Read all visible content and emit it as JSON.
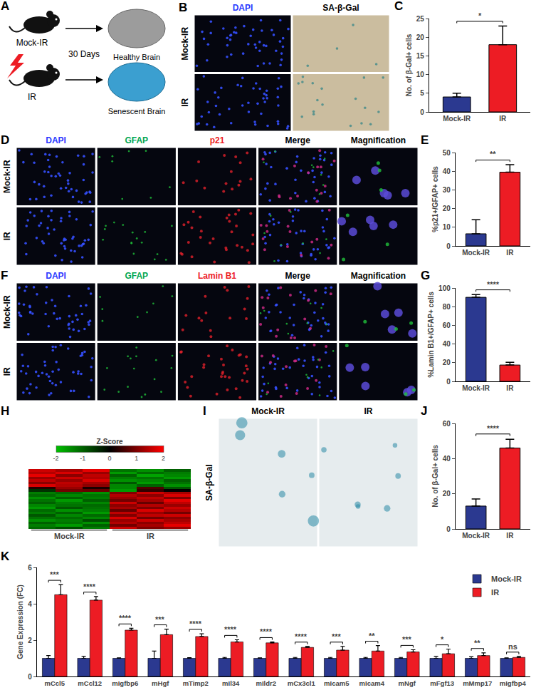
{
  "panels": [
    {
      "letter": "A",
      "groups": [
        "Mock-IR",
        "IR"
      ],
      "arrow_label": "30 Days",
      "outcomes": [
        "Healthy Brain",
        "Senescent Brain"
      ]
    },
    {
      "letter": "B",
      "columns": [
        {
          "text": "DAPI",
          "color": "#2b3aff"
        },
        {
          "text": "SA-β-Gal",
          "color": "#000000"
        }
      ],
      "rows": [
        "Mock-IR",
        "IR"
      ]
    },
    {
      "letter": "D",
      "columns": [
        {
          "text": "DAPI",
          "color": "#2b3aff"
        },
        {
          "text": "GFAP",
          "color": "#00a651"
        },
        {
          "text": "p21",
          "color": "#ed1c24"
        },
        {
          "text": "Merge",
          "color": "#000000"
        },
        {
          "text": "Magnification",
          "color": "#000000"
        }
      ],
      "rows": [
        "Mock-IR",
        "IR"
      ]
    },
    {
      "letter": "F",
      "columns": [
        {
          "text": "DAPI",
          "color": "#2b3aff"
        },
        {
          "text": "GFAP",
          "color": "#00a651"
        },
        {
          "text": "Lamin B1",
          "color": "#ed1c24"
        },
        {
          "text": "Merge",
          "color": "#000000"
        },
        {
          "text": "Magnification",
          "color": "#000000"
        }
      ],
      "rows": [
        "Mock-IR",
        "IR"
      ]
    },
    {
      "letter": "I",
      "columns": [
        {
          "text": "Mock-IR",
          "color": "#000000"
        },
        {
          "text": "IR",
          "color": "#000000"
        }
      ],
      "rows": [
        "SA-β-Gal"
      ]
    }
  ],
  "chart_data": [
    {
      "letter": "C",
      "type": "bar",
      "categories": [
        "Mock-IR",
        "IR"
      ],
      "values": [
        4,
        18
      ],
      "errors": [
        1,
        5
      ],
      "colors": [
        "#2b3990",
        "#ed1c24"
      ],
      "ylim": [
        0,
        25
      ],
      "yticks": [
        0,
        5,
        10,
        15,
        20,
        25
      ],
      "y_label": "No. of β-Gal+ cells",
      "significance": "*",
      "grid": false
    },
    {
      "letter": "E",
      "type": "bar",
      "categories": [
        "Mock-IR",
        "IR"
      ],
      "values": [
        6.5,
        39.5
      ],
      "errors": [
        7.5,
        4
      ],
      "colors": [
        "#2b3990",
        "#ed1c24"
      ],
      "ylim": [
        0,
        50
      ],
      "yticks": [
        0,
        10,
        20,
        30,
        40,
        50
      ],
      "y_label": "%p21+/GFAP+ cells",
      "significance": "**",
      "grid": false
    },
    {
      "letter": "G",
      "type": "bar",
      "categories": [
        "Mock-IR",
        "IR"
      ],
      "values": [
        90,
        17.5
      ],
      "errors": [
        3,
        3
      ],
      "colors": [
        "#2b3990",
        "#ed1c24"
      ],
      "ylim": [
        0,
        100
      ],
      "yticks": [
        0,
        20,
        40,
        60,
        80,
        100
      ],
      "y_label": "%Lamin B1+/GFAP+ cells",
      "significance": "****",
      "grid": false
    },
    {
      "letter": "H",
      "type": "heatmap",
      "group_labels": [
        "Mock-IR",
        "IR"
      ],
      "tick_labels": false,
      "cells": [
        [
          1.6,
          1.3,
          1.8,
          -1.2,
          -1.5,
          -1.0
        ],
        [
          1.4,
          1.7,
          1.2,
          -1.6,
          -1.1,
          -1.3
        ],
        [
          1.8,
          1.1,
          1.5,
          -1.0,
          -1.7,
          -1.4
        ],
        [
          1.2,
          1.6,
          1.4,
          -1.3,
          -1.2,
          -1.6
        ],
        [
          1.5,
          1.2,
          1.7,
          -1.5,
          -1.4,
          -1.0
        ],
        [
          1.1,
          1.5,
          1.3,
          -0.9,
          -1.6,
          -1.2
        ],
        [
          1.7,
          1.4,
          1.1,
          -1.4,
          -1.0,
          -1.5
        ],
        [
          0.3,
          1.2,
          0.2,
          -1.4,
          0.6,
          -0.9
        ],
        [
          -0.5,
          0.9,
          0.8,
          -1.6,
          0.4,
          0.0
        ],
        [
          -1.3,
          -1.1,
          -1.5,
          1.0,
          1.6,
          1.3
        ],
        [
          -1.1,
          -1.4,
          -1.2,
          1.4,
          1.1,
          1.7
        ],
        [
          -1.5,
          -1.0,
          -1.3,
          1.2,
          1.5,
          1.0
        ],
        [
          -1.2,
          -1.6,
          -1.0,
          0.9,
          1.3,
          1.8
        ],
        [
          -1.0,
          -1.3,
          -1.4,
          1.6,
          0.8,
          1.5
        ],
        [
          -1.4,
          -1.2,
          -1.1,
          1.1,
          1.4,
          1.2
        ],
        [
          -1.6,
          -0.9,
          -1.2,
          1.3,
          1.0,
          1.6
        ],
        [
          -1.1,
          -1.5,
          -1.3,
          0.8,
          1.7,
          1.4
        ],
        [
          -1.3,
          -1.0,
          -1.6,
          1.5,
          1.2,
          0.9
        ],
        [
          -0.9,
          -1.4,
          -1.1,
          1.0,
          1.5,
          1.6
        ],
        [
          -1.2,
          -1.1,
          -1.4,
          1.7,
          0.9,
          1.1
        ],
        [
          -1.5,
          -1.3,
          -0.8,
          1.2,
          1.6,
          1.3
        ],
        [
          -1.0,
          -1.2,
          -1.5,
          1.4,
          1.1,
          1.5
        ],
        [
          -1.3,
          -1.6,
          -1.0,
          0.9,
          1.3,
          1.8
        ],
        [
          -1.1,
          -0.8,
          -1.3,
          1.6,
          1.0,
          1.2
        ]
      ],
      "colorbar": {
        "title": "Z-Score",
        "range": [
          -2,
          2
        ],
        "ticks": [
          -2,
          -1,
          0,
          1,
          2
        ]
      }
    },
    {
      "letter": "J",
      "type": "bar",
      "categories": [
        "Mock-IR",
        "IR"
      ],
      "values": [
        13,
        46
      ],
      "errors": [
        4,
        5
      ],
      "colors": [
        "#2b3990",
        "#ed1c24"
      ],
      "ylim": [
        0,
        60
      ],
      "yticks": [
        0,
        20,
        40,
        60
      ],
      "y_label": "No. of β-Gal+ cells",
      "significance": "****",
      "grid": false
    },
    {
      "letter": "K",
      "type": "bar",
      "categories": [
        "mCcl5",
        "mCcl12",
        "mIgfbp6",
        "mHgf",
        "mTimp2",
        "mIl34",
        "mIldr2",
        "mCx3cl1",
        "mIcam5",
        "mIcam4",
        "mNgf",
        "mFgf13",
        "mMmp17",
        "mIgfbp4"
      ],
      "series": [
        {
          "name": "Mock-IR",
          "color": "#2b3990",
          "values": [
            1,
            1,
            1,
            1,
            1,
            1,
            1,
            1,
            1,
            1,
            1,
            1,
            1,
            1
          ],
          "errors": [
            0.15,
            0.1,
            0.03,
            0.4,
            0.04,
            0.05,
            0.03,
            0.05,
            0.05,
            0.05,
            0.05,
            0.1,
            0.08,
            0.03
          ]
        },
        {
          "name": "IR",
          "color": "#ed1c24",
          "values": [
            4.5,
            4.2,
            2.55,
            2.3,
            2.2,
            1.9,
            1.85,
            1.6,
            1.45,
            1.4,
            1.35,
            1.25,
            1.15,
            1.05
          ],
          "errors": [
            0.55,
            0.2,
            0.1,
            0.3,
            0.15,
            0.12,
            0.05,
            0.05,
            0.2,
            0.3,
            0.12,
            0.25,
            0.15,
            0.05
          ]
        }
      ],
      "significance": [
        "***",
        "****",
        "****",
        "***",
        "****",
        "****",
        "****",
        "****",
        "***",
        "**",
        "***",
        "*",
        "**",
        "ns"
      ],
      "ylim": [
        0,
        6
      ],
      "yticks": [
        0,
        2,
        4,
        6
      ],
      "y_label": "Gene Expression (FC)",
      "legend": "top right",
      "grid": false
    }
  ]
}
